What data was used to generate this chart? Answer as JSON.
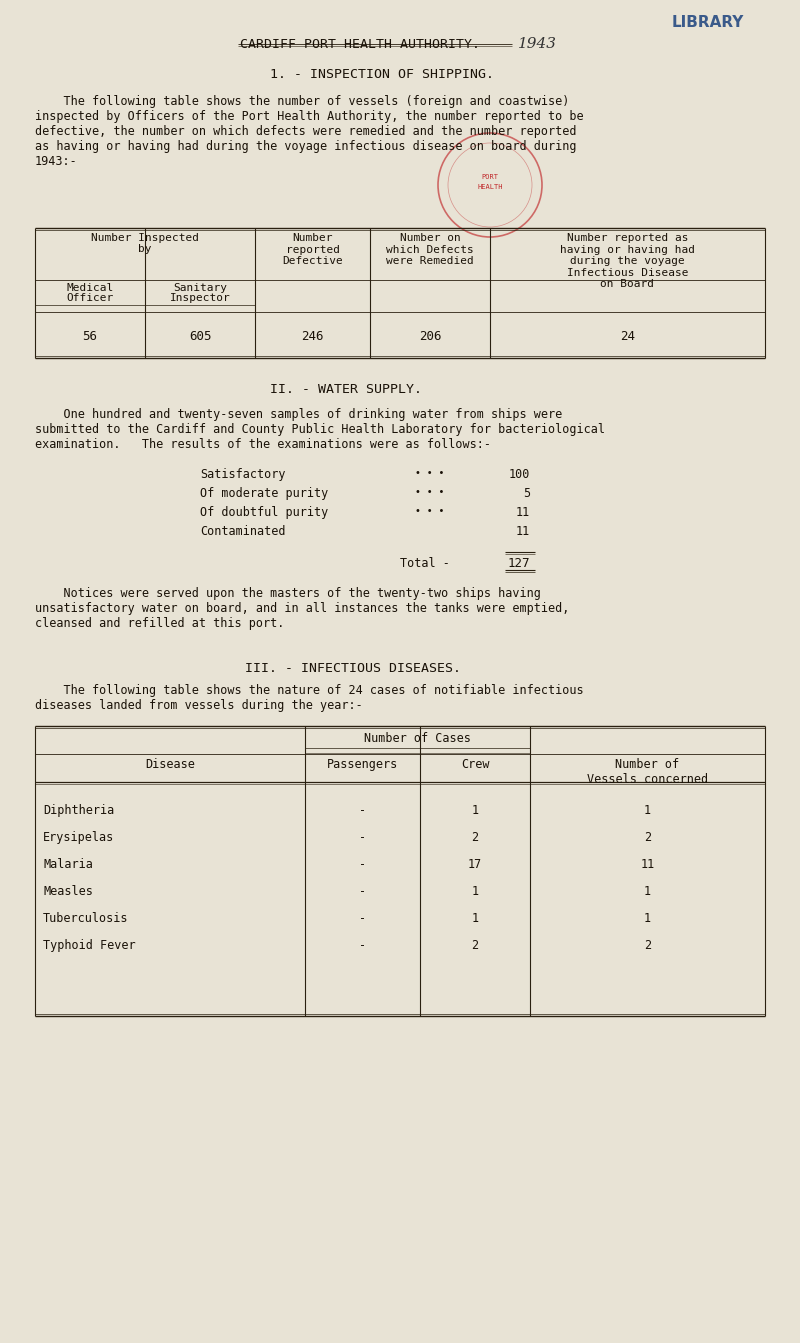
{
  "bg_color": "#e8e3d5",
  "text_color": "#1a1208",
  "title_main": "CARDIFF PORT HEALTH AUTHORITY.",
  "title_year": "1943",
  "library_stamp": "LIBRARY",
  "section1_title": "1. - INSPECTION OF SHIPPING.",
  "section1_para1": "    The following table shows the number of vessels (foreign and coastwise)\ninspected by Officers of the Port Health Authority, the number reported to be\ndefective, the number on which defects were remedied and the number reported\nas having or having had during the voyage infectious disease on board during\n1943:-",
  "table1_col1a": "Number Inspected",
  "table1_col1b": "by",
  "table1_col2": "Number\nreported\nDefective",
  "table1_col3": "Number on\nwhich Defects\nwere Remedied",
  "table1_col4": "Number reported as\nhaving or having had\nduring the voyage\nInfectious Disease\non Board",
  "table1_sub1": "Medical",
  "table1_sub2": "Officer",
  "table1_sub3": "Sanitary",
  "table1_sub4": "Inspector",
  "table1_v1": "56",
  "table1_v2": "605",
  "table1_v3": "246",
  "table1_v4": "206",
  "table1_v5": "24",
  "section2_title": "II. - WATER SUPPLY.",
  "section2_para": "    One hundred and twenty-seven samples of drinking water from ships were\nsubmitted to the Cardiff and County Public Health Laboratory for bacteriological\nexamination.   The results of the examinations were as follows:-",
  "water_labels": [
    "Satisfactory",
    "Of moderate purity",
    "Of doubtful purity",
    "Contaminated"
  ],
  "water_dots": [
    "• • •",
    "• • •",
    "• • •",
    ""
  ],
  "water_vals": [
    "100",
    "5",
    "11",
    "11"
  ],
  "water_total_label": "Total -",
  "water_total": "127",
  "section2_notice": "    Notices were served upon the masters of the twenty-two ships having\nunsatisfactory water on board, and in all instances the tanks were emptied,\ncleansed and refilled at this port.",
  "section3_title": "III. - INFECTIOUS DISEASES.",
  "section3_para": "    The following table shows the nature of 24 cases of notifiable infectious\ndiseases landed from vessels during the year:-",
  "t3_h1": "Disease",
  "t3_h2": "Number of Cases",
  "t3_h3": "Number of\nVessels concerned",
  "t3_s1": "Passengers",
  "t3_s2": "Crew",
  "diseases": [
    "Diphtheria",
    "Erysipelas",
    "Malaria",
    "Measles",
    "Tuberculosis",
    "Typhoid Fever"
  ],
  "d_pass": [
    "-",
    "-",
    "-",
    "-",
    "-",
    "-"
  ],
  "d_crew": [
    "1",
    "2",
    "17",
    "1",
    "1",
    "2"
  ],
  "d_vessels": [
    "1",
    "2",
    "11",
    "1",
    "1",
    "2"
  ],
  "stamp_color": "#c0282a"
}
